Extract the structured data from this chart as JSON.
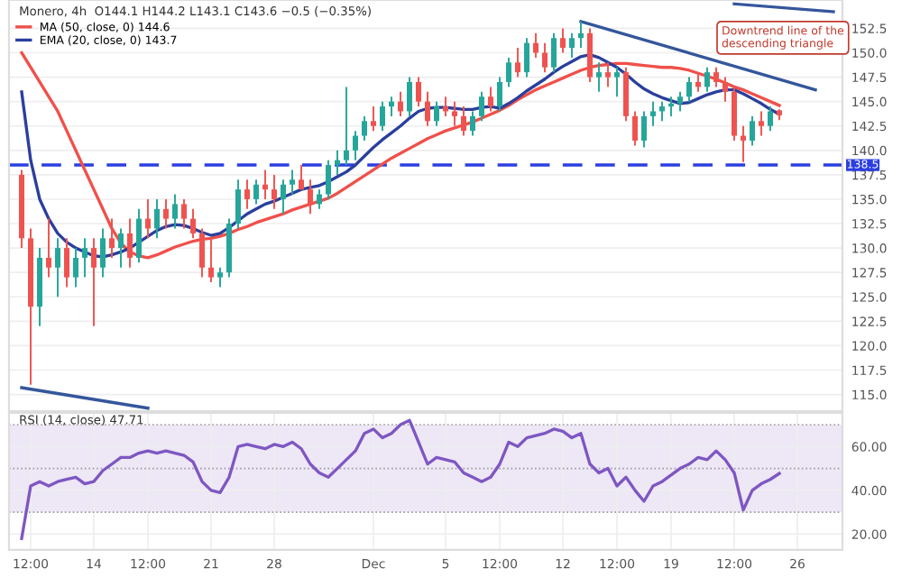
{
  "chart_data": [
    {
      "type": "candlestick",
      "title": "Monero, 4h  O144.1 H144.2 L143.1 C143.6 −0.5 (−0.35%)",
      "categories": [
        null,
        null,
        null,
        null,
        null,
        null,
        null,
        null,
        null,
        null,
        null,
        null,
        null,
        null,
        null,
        null,
        null,
        null,
        null,
        null,
        null,
        null,
        null,
        null,
        null,
        null,
        null,
        null,
        null,
        null,
        null,
        null,
        null,
        null,
        null,
        null,
        null,
        null,
        null,
        null,
        null,
        null,
        null,
        null,
        null,
        null,
        null,
        null,
        null,
        null,
        null,
        null,
        null,
        null,
        null,
        null,
        null,
        null,
        null,
        null,
        null,
        null,
        null,
        null,
        null,
        null,
        null,
        null,
        null,
        null,
        null,
        null,
        null,
        null,
        null,
        null,
        null,
        null,
        null,
        null,
        null,
        null,
        null,
        null,
        null,
        null,
        null,
        null,
        null,
        null,
        null
      ],
      "ohlc": [
        [
          137.5,
          138,
          130,
          131
        ],
        [
          131,
          132,
          116,
          124
        ],
        [
          124,
          130,
          122,
          129
        ],
        [
          129,
          133,
          127,
          128
        ],
        [
          128,
          131,
          125,
          130
        ],
        [
          130,
          131,
          126,
          127
        ],
        [
          127,
          130,
          126,
          129
        ],
        [
          129,
          131,
          127,
          130
        ],
        [
          130,
          131,
          122,
          128
        ],
        [
          128,
          132,
          127,
          131
        ],
        [
          131,
          133,
          129,
          130
        ],
        [
          130,
          132,
          128,
          131.5
        ],
        [
          131.5,
          133,
          128,
          129
        ],
        [
          129,
          134,
          128.5,
          133
        ],
        [
          133,
          135,
          131,
          132
        ],
        [
          132,
          135,
          131,
          134
        ],
        [
          134,
          135,
          132,
          133
        ],
        [
          133,
          135.5,
          132,
          134.5
        ],
        [
          134.5,
          135,
          132,
          133
        ],
        [
          133,
          134,
          131,
          131.5
        ],
        [
          131.5,
          132,
          127,
          128
        ],
        [
          128,
          131,
          126.5,
          127
        ],
        [
          127,
          128,
          126,
          127.5
        ],
        [
          127.5,
          133,
          127,
          132.5
        ],
        [
          132.5,
          137,
          132,
          136
        ],
        [
          136,
          137,
          134,
          135
        ],
        [
          135,
          137,
          134.5,
          136.5
        ],
        [
          136.5,
          138,
          135,
          136
        ],
        [
          136,
          137.5,
          134,
          135
        ],
        [
          135,
          137,
          133.5,
          136.5
        ],
        [
          136.5,
          138,
          135.5,
          137
        ],
        [
          137,
          138.5,
          136,
          136
        ],
        [
          136,
          137,
          133.5,
          134.5
        ],
        [
          134.5,
          136,
          134,
          135.5
        ],
        [
          135.5,
          139,
          135,
          138.5
        ],
        [
          138.5,
          140,
          137.5,
          139
        ],
        [
          139,
          146.5,
          138.5,
          140
        ],
        [
          140,
          142,
          139,
          141.5
        ],
        [
          141.5,
          143.5,
          141,
          143
        ],
        [
          143,
          144.5,
          142,
          142.5
        ],
        [
          142.5,
          145,
          142,
          144.5
        ],
        [
          144.5,
          145.5,
          143.5,
          145
        ],
        [
          145,
          146,
          143.5,
          144
        ],
        [
          144,
          147.5,
          143.5,
          147
        ],
        [
          147,
          147.5,
          144.5,
          145
        ],
        [
          145,
          146,
          142.5,
          143
        ],
        [
          143,
          145,
          142.5,
          144.5
        ],
        [
          144.5,
          145.5,
          143.5,
          144
        ],
        [
          144,
          145,
          142.5,
          143.5
        ],
        [
          143.5,
          144.5,
          141.5,
          142
        ],
        [
          142,
          144,
          141.5,
          143.5
        ],
        [
          143.5,
          146,
          143,
          145.5
        ],
        [
          145.5,
          146.5,
          144,
          144.5
        ],
        [
          144.5,
          147.5,
          144,
          147
        ],
        [
          147,
          149.5,
          146.5,
          149
        ],
        [
          149,
          150.5,
          147.5,
          148
        ],
        [
          148,
          151.5,
          147.5,
          151
        ],
        [
          151,
          152,
          149.5,
          150
        ],
        [
          150,
          151,
          148,
          148.5
        ],
        [
          148.5,
          152,
          148,
          151.5
        ],
        [
          151.5,
          152.5,
          150,
          150.5
        ],
        [
          150.5,
          152,
          149.5,
          151.5
        ],
        [
          151.5,
          153.2,
          150.5,
          152
        ],
        [
          152,
          152.5,
          147,
          147.5
        ],
        [
          147.5,
          149,
          146,
          148
        ],
        [
          148,
          149,
          146.5,
          147.5
        ],
        [
          147.5,
          148.5,
          145.5,
          148
        ],
        [
          148,
          148.5,
          143,
          143.5
        ],
        [
          143.5,
          144,
          140.5,
          141
        ],
        [
          141,
          144,
          140.3,
          143.5
        ],
        [
          143.5,
          145,
          142.5,
          144
        ],
        [
          144,
          145,
          143,
          144.5
        ],
        [
          144.5,
          145.5,
          143.5,
          144.8
        ],
        [
          144.8,
          146,
          144,
          145.5
        ],
        [
          145.5,
          147.5,
          145,
          147
        ],
        [
          147,
          148,
          146,
          146.5
        ],
        [
          146.5,
          148.5,
          146,
          148
        ],
        [
          148,
          148.5,
          146.5,
          147
        ],
        [
          147,
          147.5,
          145,
          146
        ],
        [
          146,
          146.5,
          141,
          141.5
        ],
        [
          141.5,
          142.5,
          138.8,
          141
        ],
        [
          141,
          143.5,
          140.5,
          143
        ],
        [
          143,
          144,
          141.5,
          142.5
        ],
        [
          142.5,
          144.5,
          142,
          144
        ],
        [
          144.1,
          144.2,
          143.1,
          143.6
        ],
        null,
        null,
        null,
        null,
        null,
        null
      ],
      "series": [
        {
          "name": "MA (50, close, 0) 144.6",
          "type": "line",
          "color": "#f0504a",
          "values": [
            150,
            148.5,
            147,
            145.5,
            144,
            142,
            140,
            138,
            136,
            134,
            132,
            130.5,
            129.6,
            129.2,
            129,
            129.3,
            129.7,
            130.1,
            130.4,
            130.7,
            130.9,
            131,
            131.2,
            131.5,
            131.9,
            132.2,
            132.6,
            132.9,
            133.2,
            133.5,
            133.9,
            134.2,
            134.5,
            134.8,
            135.1,
            135.6,
            136.2,
            136.8,
            137.4,
            138,
            138.6,
            139.2,
            139.7,
            140.2,
            140.7,
            141.2,
            141.6,
            142,
            142.3,
            142.6,
            142.9,
            143.3,
            143.7,
            144.1,
            144.6,
            145.2,
            145.7,
            146.2,
            146.6,
            147,
            147.4,
            147.8,
            148.2,
            148.5,
            148.7,
            148.8,
            148.9,
            148.9,
            148.8,
            148.7,
            148.6,
            148.5,
            148.5,
            148.4,
            148.2,
            147.9,
            147.6,
            147.3,
            146.9,
            146.5,
            146.2,
            145.8,
            145.4,
            145,
            144.6,
            null,
            null,
            null,
            null,
            null,
            null
          ]
        },
        {
          "name": "EMA (20, close, 0) 143.7",
          "type": "line",
          "color": "#2a3f9d",
          "values": [
            146,
            139,
            135,
            133,
            131.5,
            130.6,
            130,
            129.6,
            129.2,
            129.1,
            129.3,
            129.6,
            130,
            130.6,
            131.2,
            131.8,
            132.2,
            132.4,
            132.3,
            132,
            131.6,
            131.3,
            131.5,
            132.1,
            132.8,
            133.5,
            134,
            134.5,
            134.8,
            135.2,
            135.6,
            136,
            136.2,
            136.4,
            136.8,
            137.3,
            137.8,
            138.5,
            139.4,
            140.3,
            141.1,
            141.8,
            142.5,
            143.3,
            144,
            144.3,
            144.4,
            144.4,
            144.3,
            144.2,
            144.2,
            144.4,
            144.5,
            144.3,
            144.8,
            145.4,
            146.1,
            146.7,
            147.3,
            148,
            148.6,
            149.1,
            149.6,
            149.8,
            149.5,
            149,
            148.5,
            147.8,
            147,
            146.3,
            145.8,
            145.4,
            145.1,
            144.8,
            144.9,
            145.3,
            145.7,
            146,
            146.2,
            146.2,
            145.8,
            145.3,
            144.8,
            144.2,
            143.7,
            null,
            null,
            null,
            null,
            null,
            null
          ]
        },
        {
          "type": "line",
          "color": "#34569b",
          "values": [
            null,
            null,
            null,
            null,
            null,
            null,
            null,
            null,
            null,
            null,
            null,
            null,
            null,
            null,
            null,
            null,
            null,
            null,
            null,
            null,
            null,
            null,
            null,
            null,
            null,
            null,
            null,
            null,
            null,
            null,
            null,
            null,
            null,
            null,
            null,
            null,
            null,
            null,
            null,
            null,
            null,
            null,
            null,
            null,
            null,
            null,
            null,
            null,
            null,
            null,
            null,
            null,
            null,
            null,
            null,
            null,
            null,
            null,
            null,
            null,
            null,
            null,
            153.2,
            null,
            null,
            null,
            null,
            null,
            null,
            null,
            null,
            null,
            null,
            null,
            null,
            null,
            null,
            null,
            null,
            null,
            null,
            null,
            null,
            null,
            null,
            null,
            null,
            null,
            146.2,
            null,
            null
          ]
        },
        {
          "type": "line",
          "color": "#34569b",
          "values": [
            null,
            null,
            null,
            null,
            null,
            null,
            null,
            null,
            null,
            null,
            null,
            null,
            null,
            null,
            null,
            null,
            null,
            null,
            null,
            null,
            null,
            null,
            null,
            null,
            null,
            null,
            null,
            null,
            null,
            null,
            null,
            null,
            null,
            null,
            null,
            null,
            null,
            null,
            null,
            null,
            null,
            null,
            null,
            null,
            null,
            null,
            null,
            null,
            null,
            null,
            null,
            null,
            null,
            null,
            null,
            null,
            null,
            null,
            null,
            null,
            null,
            null,
            null,
            null,
            null,
            null,
            null,
            null,
            null,
            null,
            null,
            null,
            null,
            null,
            null,
            null,
            null,
            null,
            null,
            155.0,
            null,
            null,
            null,
            null,
            null,
            null,
            null,
            null,
            null,
            null,
            154.2
          ]
        },
        {
          "type": "line",
          "color": "#34569b",
          "values": [
            115.7,
            null,
            null,
            null,
            null,
            null,
            null,
            null,
            null,
            null,
            null,
            null,
            null,
            null,
            113.6,
            null,
            null,
            null,
            null,
            null,
            null,
            null,
            null,
            null,
            null,
            null,
            null,
            null,
            null,
            null,
            null,
            null,
            null,
            null,
            null,
            null,
            null,
            null,
            null,
            null,
            null,
            null,
            null,
            null,
            null,
            null,
            null,
            null,
            null,
            null,
            null,
            null,
            null,
            null,
            null,
            null,
            null,
            null,
            null,
            null,
            null,
            null,
            null,
            null,
            null,
            null,
            null,
            null,
            null,
            null,
            null,
            null,
            null,
            null,
            null,
            null,
            null,
            null,
            null,
            null,
            null,
            null,
            null,
            null,
            null,
            null,
            null,
            null,
            null,
            null,
            null
          ]
        }
      ],
      "ylim": [
        113.3,
        155.4
      ],
      "yticks": [
        {
          "value": 115,
          "label": "115.0"
        },
        {
          "value": 117.5,
          "label": "117.5"
        },
        {
          "value": 120,
          "label": "120.0"
        },
        {
          "value": 122.5,
          "label": "122.5"
        },
        {
          "value": 125,
          "label": "125.0"
        },
        {
          "value": 127.5,
          "label": "127.5"
        },
        {
          "value": 130,
          "label": "130.0"
        },
        {
          "value": 132.5,
          "label": "132.5"
        },
        {
          "value": 135,
          "label": "135.0"
        },
        {
          "value": 137.5,
          "label": "137.5"
        },
        {
          "value": 140,
          "label": "140.0"
        },
        {
          "value": 142.5,
          "label": "142.5"
        },
        {
          "value": 145,
          "label": "145.0"
        },
        {
          "value": 147.5,
          "label": "147.5"
        },
        {
          "value": 150,
          "label": "150.0"
        },
        {
          "value": 152.5,
          "label": "152.5"
        }
      ],
      "ref_lines": [
        {
          "axis": "y",
          "value": 138.5,
          "label": "138.5",
          "color": "#2b3fe0",
          "line_style": "dashed"
        }
      ],
      "annotations": [
        "Downtrend line of the descending triangle"
      ],
      "grid": true,
      "legend": "top left",
      "tick_labels": "y"
    },
    {
      "type": "line",
      "title": "RSI (14, close) 47.71",
      "categories": [
        null,
        "12:00",
        null,
        null,
        null,
        null,
        null,
        null,
        "14",
        null,
        null,
        null,
        null,
        null,
        "12:00",
        null,
        null,
        null,
        null,
        null,
        null,
        "21",
        null,
        null,
        null,
        null,
        null,
        null,
        "28",
        null,
        null,
        null,
        null,
        null,
        null,
        null,
        null,
        null,
        null,
        "Dec",
        null,
        null,
        null,
        null,
        null,
        null,
        null,
        "5",
        null,
        null,
        null,
        null,
        null,
        "12:00",
        null,
        null,
        null,
        null,
        null,
        null,
        "12",
        null,
        null,
        null,
        null,
        null,
        "12:00",
        null,
        null,
        null,
        null,
        null,
        "19",
        null,
        null,
        null,
        null,
        null,
        null,
        "12:00",
        null,
        null,
        null,
        null,
        null,
        null,
        "26",
        null,
        null,
        null,
        null
      ],
      "series": [
        {
          "color": "#7e57c2",
          "values": [
            18,
            42,
            44,
            42,
            44,
            45,
            46,
            43,
            44,
            49,
            52,
            55,
            55,
            57,
            58,
            57,
            58,
            57,
            56,
            53,
            44,
            40,
            39,
            46,
            60,
            61,
            60,
            59,
            61,
            60,
            62,
            59,
            52,
            48,
            46,
            50,
            54,
            58,
            66,
            68,
            64,
            66,
            70,
            72,
            62,
            52,
            55,
            54,
            53,
            48,
            46,
            44,
            46,
            52,
            62,
            60,
            64,
            65,
            66,
            68,
            67,
            64,
            66,
            52,
            48,
            50,
            42,
            46,
            40,
            35,
            42,
            44,
            47,
            50,
            52,
            55,
            54,
            58,
            54,
            48,
            31,
            40,
            43,
            45,
            47.71,
            null,
            null,
            null,
            null,
            null,
            null
          ]
        }
      ],
      "ylim": [
        12.8,
        75.4
      ],
      "yticks": [
        {
          "value": 20,
          "label": "20.00"
        },
        {
          "value": 40,
          "label": "40.00"
        },
        {
          "value": 60,
          "label": "60.00"
        }
      ],
      "bands": [
        {
          "axis": "y",
          "from": 30,
          "to": 70,
          "color": "#ede7f6"
        }
      ],
      "ref_lines": [
        {
          "axis": "y",
          "value": 30,
          "color": "#9e9e9e",
          "line_style": "dotted"
        },
        {
          "axis": "y",
          "value": 50,
          "color": "#9e9e9e",
          "line_style": "dotted"
        },
        {
          "axis": "y",
          "value": 70,
          "color": "#9e9e9e",
          "line_style": "dotted"
        }
      ],
      "grid": true
    }
  ]
}
